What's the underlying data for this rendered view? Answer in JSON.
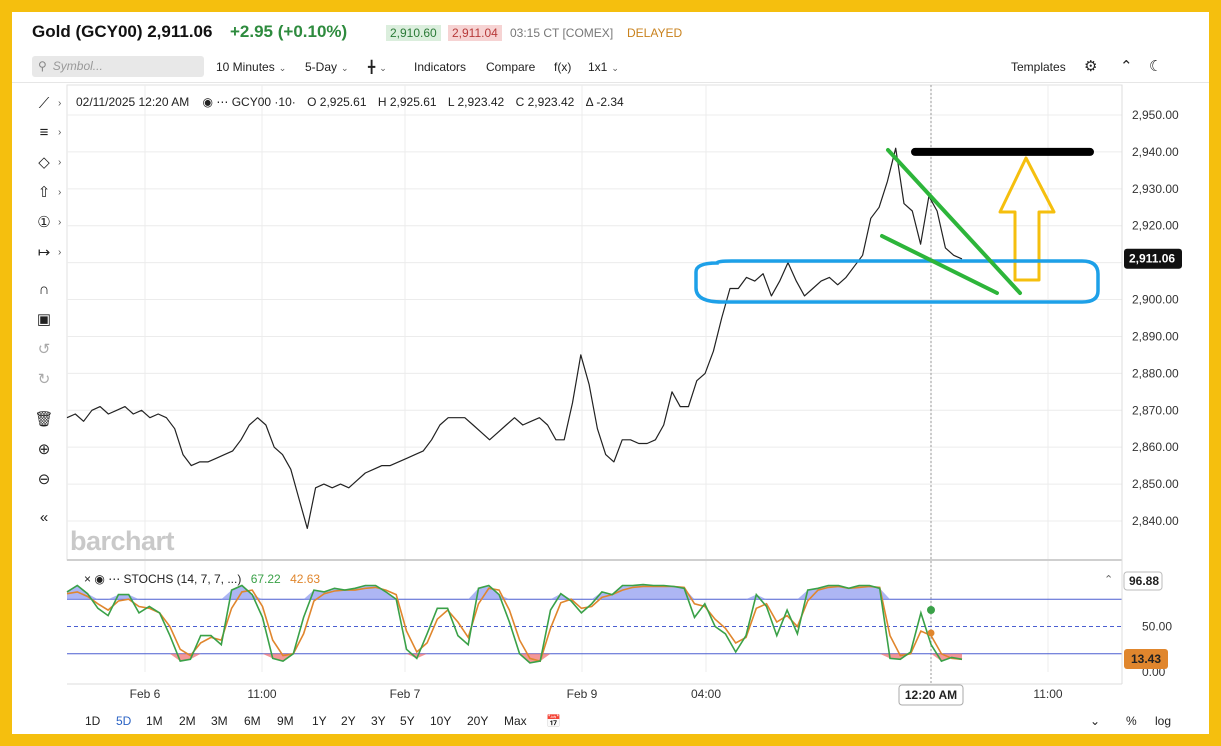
{
  "header": {
    "title": "Gold (GCY00) 2,911.06",
    "change": "+2.95 (+0.10%)",
    "bid": "2,910.60",
    "ask": "2,911.04",
    "time_exchange": "03:15 CT  [COMEX]",
    "status": "DELAYED"
  },
  "toolbar": {
    "symbol_placeholder": "Symbol...",
    "interval": "10 Minutes",
    "period": "5-Day",
    "indicators": "Indicators",
    "compare": "Compare",
    "fx": "f(x)",
    "layout": "1x1",
    "templates": "Templates"
  },
  "ohlc": {
    "datetime": "02/11/2025 12:20 AM",
    "symbol": "GCY00 ·10·",
    "o_label": "O",
    "o": "2,925.61",
    "h_label": "H",
    "h": "2,925.61",
    "l_label": "L",
    "l": "2,923.42",
    "c_label": "C",
    "c": "2,923.42",
    "d_label": "Δ",
    "d": "-2.34"
  },
  "stoch": {
    "label": "STOCHS (14, 7, 7, ...)",
    "k": "67.22",
    "d": "42.63"
  },
  "watermark": "barchart",
  "colors": {
    "accent": "#2b63c4",
    "up": "#2e8b3e",
    "down": "#b73a3a",
    "stoch_k": "#3aa148",
    "stoch_d": "#e0862d",
    "annot_green": "#2db53a",
    "annot_blue": "#1da0e8",
    "annot_arrow": "#f5bf0e"
  },
  "icons": [
    "line-tool-icon",
    "fib-tool-icon",
    "shape-tool-icon",
    "arrow-tool-icon",
    "counter-tool-icon",
    "measure-tool-icon",
    "magnet-icon",
    "lock-icon",
    "undo-icon",
    "redo-icon",
    "trash-icon",
    "zoom-in-icon",
    "zoom-out-icon",
    "collapse-icon",
    "settings-icon",
    "expand-icon",
    "dark-mode-icon",
    "calendar-icon"
  ],
  "bottom": {
    "ranges": [
      "1D",
      "5D",
      "1M",
      "2M",
      "3M",
      "6M",
      "9M",
      "1Y",
      "2Y",
      "3Y",
      "5Y",
      "10Y",
      "20Y",
      "Max"
    ],
    "active_range": "5D",
    "pct": "%",
    "log": "log"
  },
  "chart_data": {
    "type": "line",
    "title": "",
    "xlabel": "",
    "ylabel": "",
    "ylim": [
      2833,
      2958
    ],
    "y_ticks": [
      "2,950.00",
      "2,940.00",
      "2,930.00",
      "2,920.00",
      "2,910.00",
      "2,900.00",
      "2,890.00",
      "2,880.00",
      "2,870.00",
      "2,860.00",
      "2,850.00",
      "2,840.00"
    ],
    "x_ticks": [
      "Feb 6",
      "11:00",
      "Feb 7",
      "Feb 9",
      "04:00",
      "12:20 AM",
      "11:00"
    ],
    "last_price": "2,911.06",
    "grid": true,
    "series": [
      {
        "values": [
          2868,
          2869,
          2867,
          2870,
          2871,
          2869,
          2870,
          2871,
          2869,
          2870,
          2868,
          2869,
          2868,
          2865,
          2858,
          2855,
          2856,
          2856,
          2857,
          2858,
          2859,
          2862,
          2866,
          2868,
          2866,
          2860,
          2858,
          2854,
          2846,
          2838,
          2849,
          2850,
          2849,
          2850,
          2849,
          2851,
          2853,
          2854,
          2855,
          2855,
          2856,
          2857,
          2858,
          2859,
          2862,
          2866,
          2868,
          2868,
          2868,
          2866,
          2864,
          2862,
          2864,
          2866,
          2868,
          2866,
          2867,
          2868,
          2866,
          2862,
          2862,
          2872,
          2885,
          2877,
          2865,
          2858,
          2856,
          2862,
          2862,
          2861,
          2861,
          2862,
          2866,
          2875,
          2871,
          2871,
          2878,
          2880,
          2886,
          2895,
          2903,
          2903,
          2906,
          2905,
          2907,
          2901,
          2905,
          2910,
          2905,
          2901,
          2903,
          2905,
          2906,
          2904,
          2906,
          2909,
          2912,
          2922,
          2925,
          2932,
          2941,
          2926,
          2924,
          2915,
          2928,
          2924,
          2914,
          2912,
          2911
        ]
      }
    ],
    "stoch_series": [
      {
        "name": "%K",
        "values": [
          88,
          95,
          86,
          70,
          62,
          85,
          85,
          65,
          72,
          65,
          40,
          12,
          14,
          40,
          40,
          30,
          90,
          95,
          85,
          60,
          15,
          12,
          20,
          60,
          90,
          88,
          92,
          90,
          92,
          95,
          95,
          88,
          80,
          25,
          15,
          42,
          70,
          70,
          40,
          30,
          92,
          95,
          85,
          55,
          20,
          10,
          12,
          68,
          86,
          78,
          65,
          75,
          88,
          85,
          95,
          95,
          96,
          95,
          95,
          94,
          92,
          60,
          75,
          50,
          42,
          22,
          40,
          85,
          72,
          40,
          68,
          42,
          90,
          92,
          95,
          95,
          92,
          95,
          95,
          92,
          15,
          14,
          22,
          65,
          30,
          12,
          16,
          14
        ]
      },
      {
        "name": "%D",
        "values": [
          86,
          88,
          83,
          75,
          68,
          78,
          80,
          72,
          70,
          65,
          50,
          25,
          18,
          32,
          38,
          35,
          70,
          88,
          90,
          72,
          35,
          18,
          20,
          42,
          78,
          86,
          89,
          90,
          90,
          92,
          93,
          90,
          85,
          45,
          22,
          32,
          58,
          68,
          55,
          38,
          75,
          92,
          90,
          68,
          35,
          15,
          12,
          48,
          76,
          80,
          70,
          72,
          82,
          85,
          90,
          93,
          94,
          94,
          94,
          94,
          93,
          75,
          72,
          58,
          48,
          32,
          38,
          70,
          75,
          55,
          62,
          50,
          78,
          90,
          93,
          94,
          92,
          93,
          94,
          93,
          40,
          18,
          20,
          45,
          40,
          20,
          15,
          14
        ]
      }
    ],
    "stoch_axis": [
      "50.00",
      "0.00"
    ],
    "stoch_readout": "96.88",
    "stoch_last": "13.43",
    "annotations": [
      {
        "kind": "resistance-line",
        "color": "black",
        "price": 2940
      },
      {
        "kind": "up-arrow",
        "color": "gold"
      },
      {
        "kind": "support-zone",
        "color": "blue",
        "price_range": [
          2900,
          2910
        ]
      },
      {
        "kind": "wedge",
        "color": "green"
      }
    ]
  }
}
